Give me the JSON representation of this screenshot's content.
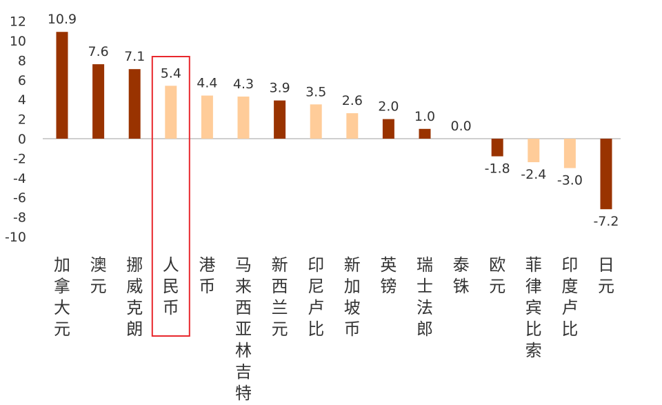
{
  "chart_data": {
    "type": "bar",
    "title": "",
    "xlabel": "",
    "ylabel": "",
    "ylim": [
      -10,
      12
    ],
    "yticks": [
      12,
      10,
      8,
      6,
      4,
      2,
      0,
      -2,
      -4,
      -6,
      -8,
      -10
    ],
    "grid": false,
    "categories": [
      "加拿大元",
      "澳元",
      "挪威克朗",
      "人民币",
      "港币",
      "马来西亚林吉特",
      "新西兰元",
      "印尼卢比",
      "新加坡币",
      "英镑",
      "瑞士法郎",
      "泰铢",
      "欧元",
      "菲律宾比索",
      "印度卢比",
      "日元"
    ],
    "values": [
      10.9,
      7.6,
      7.1,
      5.4,
      4.4,
      4.3,
      3.9,
      3.5,
      2.6,
      2.0,
      1.0,
      0.0,
      -1.8,
      -2.4,
      -3.0,
      -7.2
    ],
    "value_labels": [
      "10.9",
      "7.6",
      "7.1",
      "5.4",
      "4.4",
      "4.3",
      "3.9",
      "3.5",
      "2.6",
      "2.0",
      "1.0",
      "0.0",
      "-1.8",
      "-2.4",
      "-3.0",
      "-7.2"
    ],
    "bar_styles": [
      "dark",
      "dark",
      "dark",
      "light",
      "light",
      "light",
      "dark",
      "light",
      "light",
      "dark",
      "dark",
      "light",
      "dark",
      "light",
      "light",
      "dark"
    ],
    "highlighted_category": "人民币",
    "colors": {
      "dark": "#993300",
      "light": "#FFCC99",
      "highlight_box": "#E8262B",
      "axis": "#BFBFBF",
      "text": "#333333"
    }
  }
}
